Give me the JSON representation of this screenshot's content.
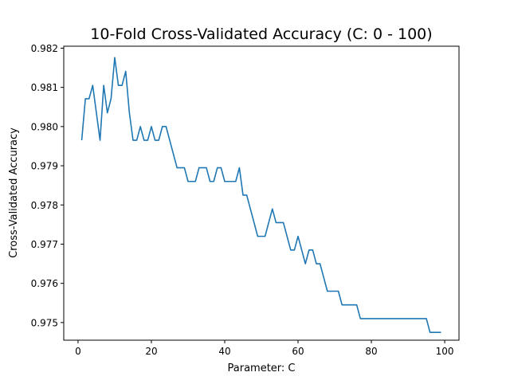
{
  "chart_data": {
    "type": "line",
    "title": "10-Fold Cross-Validated Accuracy (C: 0 - 100)",
    "xlabel": "Parameter: C",
    "ylabel": "Cross-Validated Accuracy",
    "xlim": [
      -3.9,
      103.9
    ],
    "ylim": [
      0.97455,
      0.98205
    ],
    "xticks": [
      0,
      20,
      40,
      60,
      80,
      100
    ],
    "yticks": [
      0.975,
      0.976,
      0.977,
      0.978,
      0.979,
      0.98,
      0.981,
      0.982
    ],
    "ytick_labels": [
      "0.975",
      "0.976",
      "0.977",
      "0.978",
      "0.979",
      "0.980",
      "0.981",
      "0.982"
    ],
    "grid": false,
    "line_color": "#1f77b4",
    "series": [
      {
        "x": [
          1,
          2,
          3,
          4,
          5,
          6,
          7,
          8,
          9,
          10,
          11,
          12,
          13,
          14,
          15,
          16,
          17,
          18,
          19,
          20,
          21,
          22,
          23,
          24,
          25,
          26,
          27,
          28,
          29,
          30,
          31,
          32,
          33,
          34,
          35,
          36,
          37,
          38,
          39,
          40,
          41,
          42,
          43,
          44,
          45,
          46,
          47,
          48,
          49,
          50,
          51,
          52,
          53,
          54,
          55,
          56,
          57,
          58,
          59,
          60,
          61,
          62,
          63,
          64,
          65,
          66,
          67,
          68,
          69,
          70,
          71,
          72,
          73,
          74,
          75,
          76,
          77,
          78,
          79,
          80,
          81,
          82,
          83,
          84,
          85,
          86,
          87,
          88,
          89,
          90,
          91,
          92,
          93,
          94,
          95,
          96,
          97,
          98,
          99
        ],
        "values": [
          0.97965,
          0.98071,
          0.98071,
          0.98105,
          0.98035,
          0.97965,
          0.98105,
          0.98035,
          0.98071,
          0.98176,
          0.98105,
          0.98105,
          0.98141,
          0.98035,
          0.97965,
          0.97965,
          0.98,
          0.97965,
          0.97965,
          0.98,
          0.97965,
          0.97965,
          0.98,
          0.98,
          0.97965,
          0.9793,
          0.97895,
          0.97895,
          0.97895,
          0.9786,
          0.9786,
          0.9786,
          0.97895,
          0.97895,
          0.97895,
          0.9786,
          0.9786,
          0.97895,
          0.97895,
          0.9786,
          0.9786,
          0.9786,
          0.9786,
          0.97895,
          0.97825,
          0.97825,
          0.9779,
          0.97755,
          0.9772,
          0.9772,
          0.9772,
          0.97755,
          0.9779,
          0.97755,
          0.97755,
          0.97755,
          0.9772,
          0.97685,
          0.97685,
          0.9772,
          0.97685,
          0.9765,
          0.97685,
          0.97685,
          0.9765,
          0.9765,
          0.97615,
          0.9758,
          0.9758,
          0.9758,
          0.9758,
          0.97545,
          0.97545,
          0.97545,
          0.97545,
          0.97545,
          0.9751,
          0.9751,
          0.9751,
          0.9751,
          0.9751,
          0.9751,
          0.9751,
          0.9751,
          0.9751,
          0.9751,
          0.9751,
          0.9751,
          0.9751,
          0.9751,
          0.9751,
          0.9751,
          0.9751,
          0.9751,
          0.9751,
          0.97475,
          0.97475,
          0.97475,
          0.97475
        ]
      }
    ]
  }
}
